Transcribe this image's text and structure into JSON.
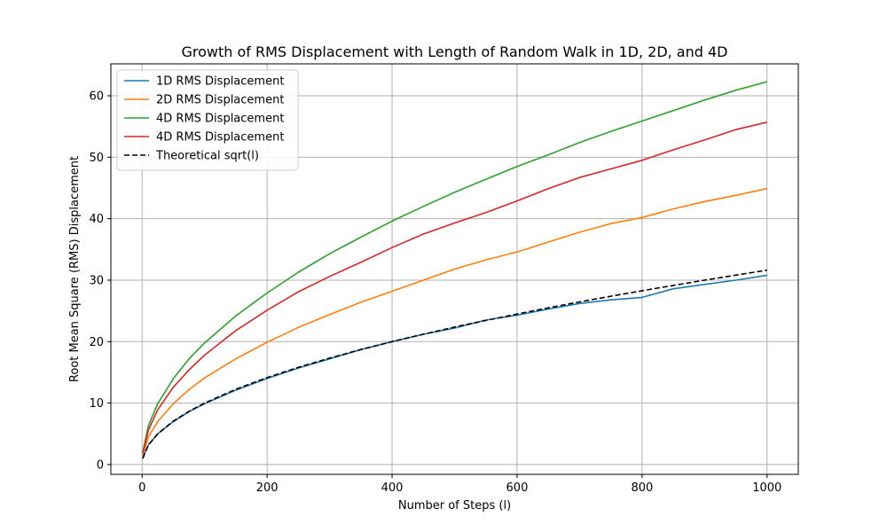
{
  "chart_data": {
    "type": "line",
    "title": "Growth of RMS Displacement with Length of Random Walk in 1D, 2D, and 4D",
    "xlabel": "Number of Steps (l)",
    "ylabel": "Root Mean Square (RMS) Displacement",
    "xlim": [
      -50,
      1050
    ],
    "ylim": [
      -1.6,
      65.2
    ],
    "xticks": [
      0,
      200,
      400,
      600,
      800,
      1000
    ],
    "yticks": [
      0,
      10,
      20,
      30,
      40,
      50,
      60
    ],
    "grid": true,
    "legend_position": "top-left",
    "x": [
      1,
      10,
      25,
      50,
      75,
      100,
      150,
      200,
      250,
      300,
      350,
      400,
      450,
      500,
      550,
      600,
      650,
      700,
      750,
      800,
      850,
      900,
      950,
      1000
    ],
    "series": [
      {
        "name": "1D RMS Displacement",
        "color": "#1f77b4",
        "style": "solid",
        "values": [
          1.0,
          3.2,
          5.0,
          7.0,
          8.6,
          9.9,
          12.1,
          14.0,
          15.7,
          17.2,
          18.7,
          20.0,
          21.2,
          22.2,
          23.5,
          24.3,
          25.3,
          26.2,
          26.8,
          27.2,
          28.6,
          29.3,
          30.0,
          30.8
        ]
      },
      {
        "name": "2D RMS Displacement",
        "color": "#ff7f0e",
        "style": "solid",
        "values": [
          1.4,
          4.5,
          7.0,
          9.9,
          12.2,
          14.1,
          17.2,
          19.9,
          22.3,
          24.4,
          26.4,
          28.2,
          30.0,
          31.8,
          33.3,
          34.6,
          36.2,
          37.8,
          39.2,
          40.2,
          41.6,
          42.8,
          43.8,
          44.9
        ]
      },
      {
        "name": "4D RMS Displacement",
        "color": "#2ca02c",
        "style": "solid",
        "values": [
          2.0,
          6.3,
          9.9,
          14.0,
          17.2,
          19.8,
          24.2,
          27.9,
          31.3,
          34.3,
          37.0,
          39.6,
          42.0,
          44.3,
          46.4,
          48.5,
          50.4,
          52.4,
          54.2,
          55.9,
          57.6,
          59.3,
          60.9,
          62.3
        ]
      },
      {
        "name": "4D RMS Displacement",
        "color": "#d62728",
        "style": "solid",
        "values": [
          1.8,
          5.6,
          8.9,
          12.6,
          15.4,
          17.8,
          21.8,
          25.1,
          28.1,
          30.6,
          32.9,
          35.3,
          37.5,
          39.3,
          41.0,
          42.9,
          44.9,
          46.7,
          48.1,
          49.5,
          51.2,
          52.8,
          54.5,
          55.7
        ]
      },
      {
        "name": "Theoretical sqrt(l)",
        "color": "#000000",
        "style": "dashed",
        "values": [
          1.0,
          3.16,
          5.0,
          7.07,
          8.66,
          10.0,
          12.25,
          14.14,
          15.81,
          17.32,
          18.71,
          20.0,
          21.21,
          22.36,
          23.45,
          24.49,
          25.5,
          26.46,
          27.39,
          28.28,
          29.15,
          30.0,
          30.82,
          31.62
        ]
      }
    ]
  }
}
